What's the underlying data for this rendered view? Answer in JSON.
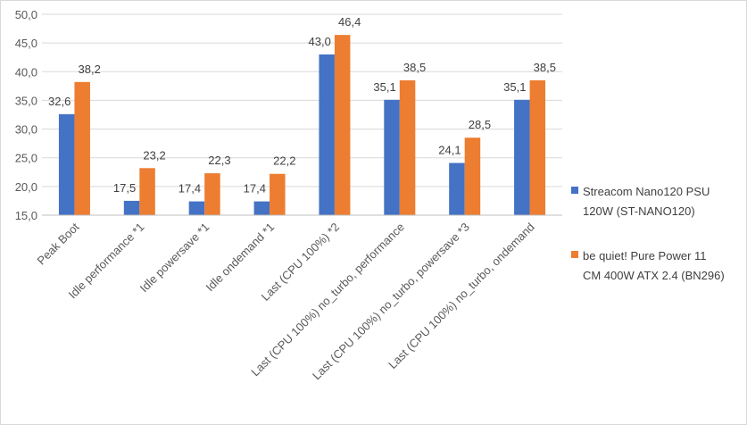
{
  "chart_data": {
    "type": "bar",
    "title": "",
    "xlabel": "",
    "ylabel": "",
    "ylim": [
      15,
      50
    ],
    "ytick_step": 5,
    "ytick_labels": [
      "15,0",
      "20,0",
      "25,0",
      "30,0",
      "35,0",
      "40,0",
      "45,0",
      "50,0"
    ],
    "grid": true,
    "legend_position": "right",
    "categories": [
      "Peak Boot",
      "Idle performance *1",
      "Idle powersave *1",
      "Idle ondemand *1",
      "Last (CPU 100%) *2",
      "Last (CPU 100%) no_turbo, performance",
      "Last (CPU 100%) no_turbo, powersave *3",
      "Last (CPU 100%) no_turbo, ondemand"
    ],
    "series": [
      {
        "name_lines": [
          "Streacom  Nano120 PSU",
          "120W (ST-NANO120)"
        ],
        "color": "#4472c4",
        "values": [
          32.6,
          17.5,
          17.4,
          17.4,
          43.0,
          35.1,
          24.1,
          35.1
        ],
        "labels": [
          "32,6",
          "17,5",
          "17,4",
          "17,4",
          "43,0",
          "35,1",
          "24,1",
          "35,1"
        ]
      },
      {
        "name_lines": [
          "be quiet! Pure Power 11",
          "CM 400W ATX 2.4 (BN296)"
        ],
        "color": "#ed7d31",
        "values": [
          38.2,
          23.2,
          22.3,
          22.2,
          46.4,
          38.5,
          28.5,
          38.5
        ],
        "labels": [
          "38,2",
          "23,2",
          "22,3",
          "22,2",
          "46,4",
          "38,5",
          "28,5",
          "38,5"
        ]
      }
    ]
  }
}
